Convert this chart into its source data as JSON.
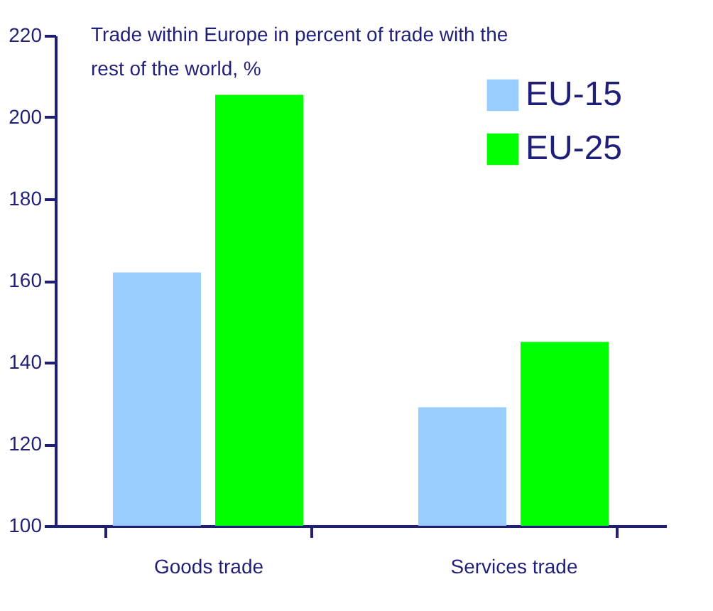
{
  "chart_data": {
    "type": "bar",
    "title": "Trade within Europe in percent of trade with the rest of the world, %",
    "categories": [
      "Goods trade",
      "Services trade"
    ],
    "series": [
      {
        "name": "EU-15",
        "color": "#99ccff",
        "values": [
          162,
          129
        ]
      },
      {
        "name": "EU-25",
        "color": "#00ff00",
        "values": [
          205.5,
          145
        ]
      }
    ],
    "ylim": [
      100,
      220
    ],
    "yticks": [
      100,
      120,
      140,
      160,
      180,
      200,
      220
    ],
    "grid": false,
    "legend": "top right"
  }
}
